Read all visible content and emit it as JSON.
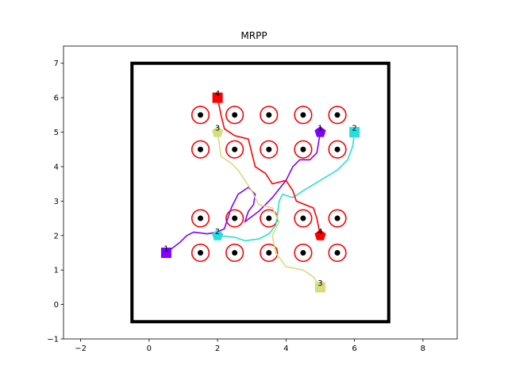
{
  "chart_data": {
    "type": "scatter",
    "title": "MRPP",
    "xlabel": "",
    "ylabel": "",
    "xlim": [
      -2.5,
      9.0
    ],
    "ylim": [
      -1.0,
      7.5
    ],
    "x_ticks": [
      -2,
      0,
      2,
      4,
      6,
      8
    ],
    "y_ticks": [
      -1,
      0,
      1,
      2,
      3,
      4,
      5,
      6,
      7
    ],
    "grid": false,
    "legend": "none",
    "boundary": {
      "x": [
        -0.5,
        7.0
      ],
      "y": [
        -0.5,
        7.0
      ],
      "color": "#000000"
    },
    "obstacles": [
      [
        1.5,
        5.5
      ],
      [
        2.5,
        5.5
      ],
      [
        3.5,
        5.5
      ],
      [
        4.5,
        5.5
      ],
      [
        5.5,
        5.5
      ],
      [
        1.5,
        4.5
      ],
      [
        2.5,
        4.5
      ],
      [
        3.5,
        4.5
      ],
      [
        4.5,
        4.5
      ],
      [
        5.5,
        4.5
      ],
      [
        1.5,
        2.5
      ],
      [
        2.5,
        2.5
      ],
      [
        3.5,
        2.5
      ],
      [
        4.5,
        2.5
      ],
      [
        5.5,
        2.5
      ],
      [
        1.5,
        1.5
      ],
      [
        2.5,
        1.5
      ],
      [
        3.5,
        1.5
      ],
      [
        4.5,
        1.5
      ],
      [
        5.5,
        1.5
      ]
    ],
    "obstacle_colors": {
      "ring": "#ff0000",
      "center": "#000000"
    },
    "series": [
      {
        "label": "1",
        "color": "#8000ff",
        "start": [
          0.5,
          1.5
        ],
        "goal": [
          5.0,
          5.0
        ],
        "path": [
          [
            0.5,
            1.5
          ],
          [
            0.9,
            1.8
          ],
          [
            1.1,
            2.0
          ],
          [
            1.3,
            2.1
          ],
          [
            1.7,
            2.05
          ],
          [
            2.0,
            2.1
          ],
          [
            2.2,
            2.2
          ],
          [
            2.4,
            2.8
          ],
          [
            2.6,
            3.2
          ],
          [
            2.9,
            3.4
          ],
          [
            3.1,
            3.2
          ],
          [
            3.05,
            2.9
          ],
          [
            2.9,
            2.7
          ],
          [
            2.8,
            2.4
          ],
          [
            3.2,
            2.7
          ],
          [
            3.6,
            3.1
          ],
          [
            4.0,
            3.6
          ],
          [
            4.2,
            4.0
          ],
          [
            4.4,
            4.2
          ],
          [
            4.7,
            4.2
          ],
          [
            4.9,
            4.4
          ],
          [
            5.0,
            5.0
          ]
        ]
      },
      {
        "label": "2",
        "color": "#2adddd",
        "start": [
          6.0,
          5.0
        ],
        "goal": [
          2.0,
          2.0
        ],
        "path": [
          [
            6.0,
            5.0
          ],
          [
            5.95,
            4.6
          ],
          [
            5.8,
            4.2
          ],
          [
            5.5,
            3.9
          ],
          [
            5.0,
            3.6
          ],
          [
            4.5,
            3.3
          ],
          [
            4.2,
            3.1
          ],
          [
            3.9,
            3.2
          ],
          [
            3.8,
            3.0
          ],
          [
            3.75,
            2.6
          ],
          [
            3.7,
            2.3
          ],
          [
            3.5,
            2.05
          ],
          [
            3.2,
            1.9
          ],
          [
            2.8,
            1.85
          ],
          [
            2.5,
            1.95
          ],
          [
            2.0,
            2.0
          ]
        ]
      },
      {
        "label": "3",
        "color": "#d4dd80",
        "start": [
          5.0,
          0.5
        ],
        "goal": [
          2.0,
          5.0
        ],
        "path": [
          [
            5.0,
            0.5
          ],
          [
            4.8,
            0.8
          ],
          [
            4.5,
            1.0
          ],
          [
            4.0,
            1.1
          ],
          [
            3.7,
            1.5
          ],
          [
            3.6,
            2.0
          ],
          [
            3.8,
            2.4
          ],
          [
            3.6,
            2.8
          ],
          [
            3.2,
            2.9
          ],
          [
            3.0,
            3.3
          ],
          [
            2.8,
            3.6
          ],
          [
            2.6,
            3.9
          ],
          [
            2.4,
            4.1
          ],
          [
            2.1,
            4.3
          ],
          [
            2.0,
            5.0
          ]
        ]
      },
      {
        "label": "4",
        "color": "#ff0000",
        "start": [
          2.0,
          6.0
        ],
        "goal": [
          5.0,
          2.0
        ],
        "path": [
          [
            2.0,
            6.0
          ],
          [
            2.1,
            5.5
          ],
          [
            2.2,
            5.1
          ],
          [
            2.5,
            4.9
          ],
          [
            2.9,
            4.8
          ],
          [
            3.0,
            4.4
          ],
          [
            3.1,
            4.0
          ],
          [
            3.4,
            3.8
          ],
          [
            3.6,
            3.5
          ],
          [
            4.0,
            3.6
          ],
          [
            4.2,
            3.3
          ],
          [
            4.3,
            3.0
          ],
          [
            4.8,
            2.8
          ],
          [
            4.9,
            2.5
          ],
          [
            5.0,
            2.0
          ]
        ]
      }
    ]
  }
}
